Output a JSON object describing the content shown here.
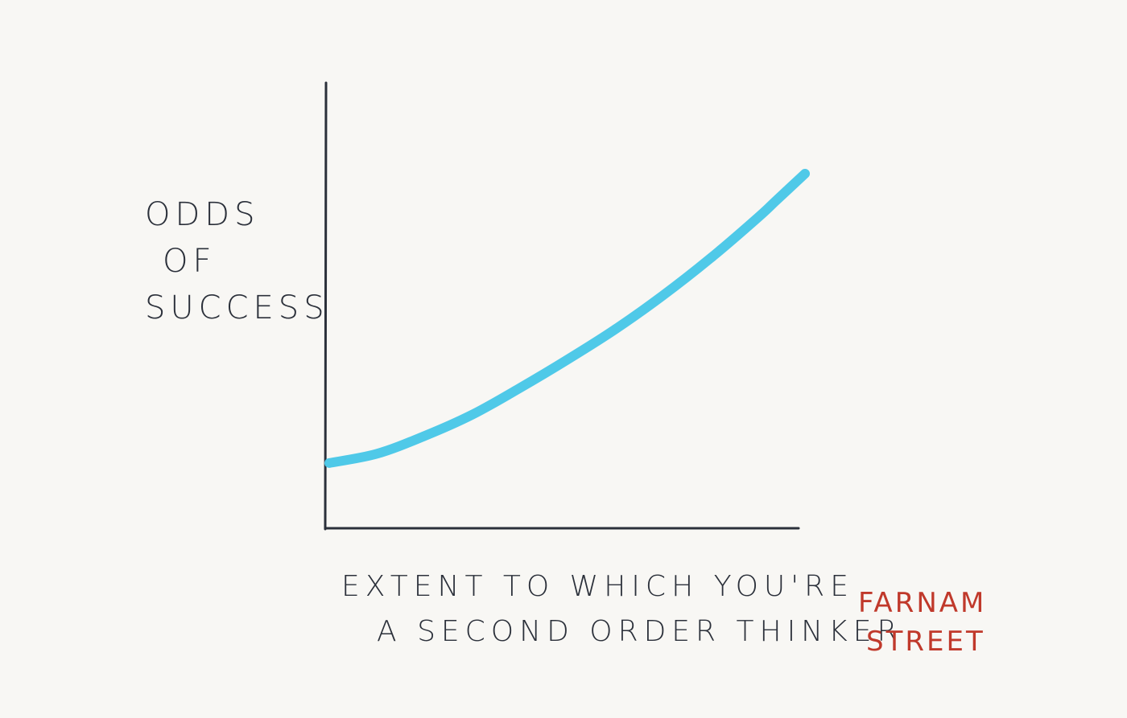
{
  "chart_data": {
    "type": "line",
    "title": "",
    "ylabel_lines": [
      "ODDS",
      "OF",
      "SUCCESS"
    ],
    "xlabel_lines": [
      "EXTENT  TO WHICH YOU'RE",
      "A SECOND ORDER THINKER"
    ],
    "grid": false,
    "ticks": false,
    "xlim": [
      0,
      10
    ],
    "ylim": [
      0,
      10
    ],
    "series": [
      {
        "color": "#4fc9e8",
        "x": [
          0,
          1,
          2,
          3,
          4,
          5,
          6,
          7,
          8,
          9,
          9.4,
          10
        ],
        "y": [
          1.84,
          2.1,
          2.6,
          3.2,
          3.95,
          4.75,
          5.6,
          6.55,
          7.6,
          8.75,
          9.25,
          10
        ]
      }
    ]
  },
  "brand": {
    "line1": "FARNAM",
    "line2": "STREET",
    "color": "#c0392b"
  },
  "axis_color": "#2b303a"
}
